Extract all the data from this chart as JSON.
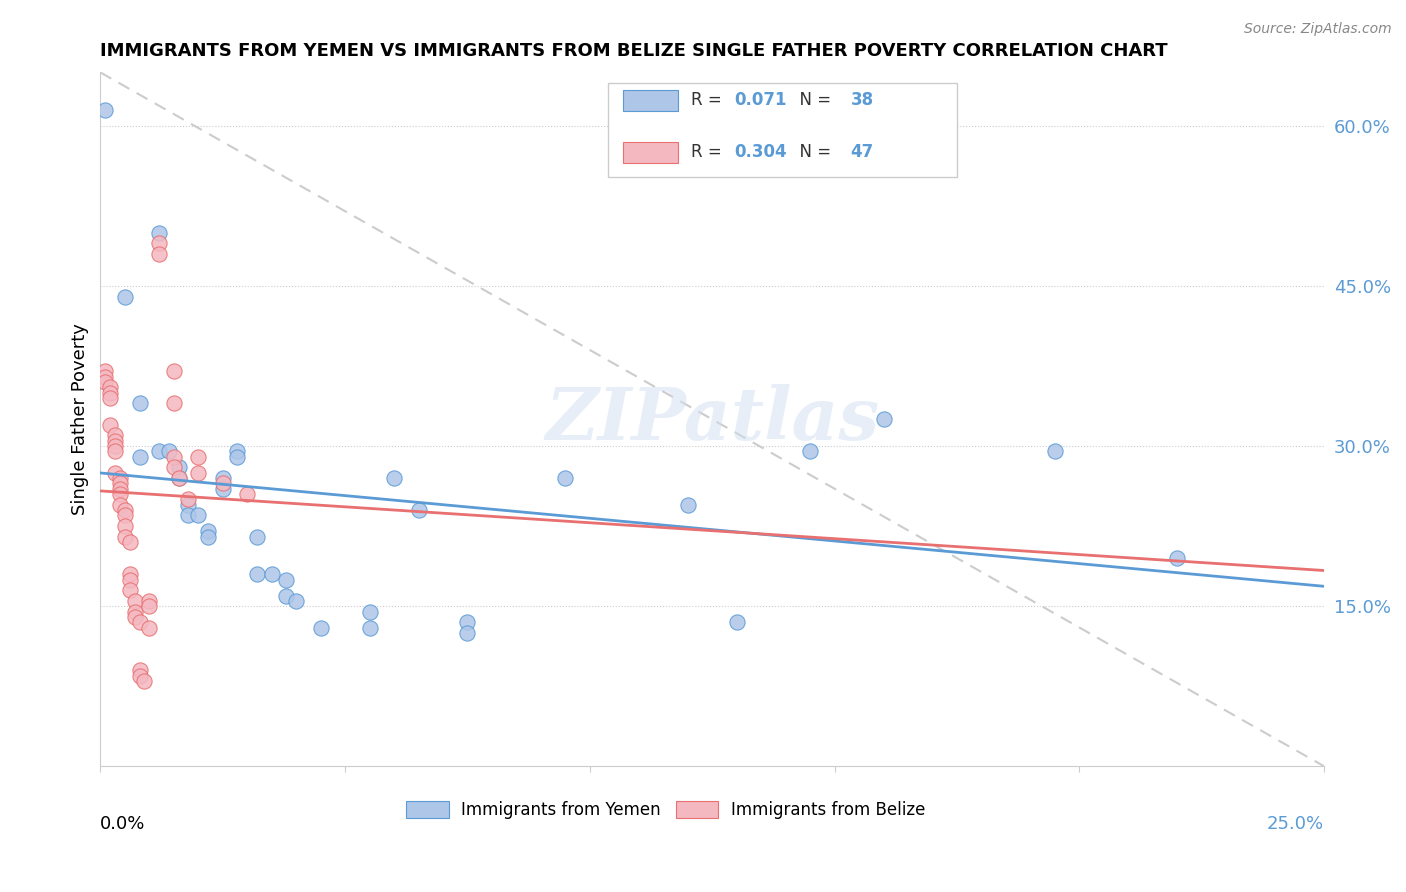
{
  "title": "IMMIGRANTS FROM YEMEN VS IMMIGRANTS FROM BELIZE SINGLE FATHER POVERTY CORRELATION CHART",
  "source": "Source: ZipAtlas.com",
  "ylabel": "Single Father Poverty",
  "ylabel_right_vals": [
    0.6,
    0.45,
    0.3,
    0.15
  ],
  "xlim": [
    0.0,
    0.25
  ],
  "ylim": [
    0.0,
    0.65
  ],
  "legend1_color": "#aec6e8",
  "legend2_color": "#f4b8c1",
  "trendline1_color": "#5b9bd5",
  "trendline2_color": "#e87070",
  "diagonal_color": "#cccccc",
  "watermark": "ZIPatlas",
  "blue_scatter": [
    [
      0.001,
      0.615
    ],
    [
      0.005,
      0.44
    ],
    [
      0.008,
      0.34
    ],
    [
      0.008,
      0.29
    ],
    [
      0.012,
      0.5
    ],
    [
      0.012,
      0.295
    ],
    [
      0.014,
      0.295
    ],
    [
      0.016,
      0.28
    ],
    [
      0.016,
      0.27
    ],
    [
      0.018,
      0.245
    ],
    [
      0.018,
      0.235
    ],
    [
      0.02,
      0.235
    ],
    [
      0.022,
      0.22
    ],
    [
      0.022,
      0.215
    ],
    [
      0.025,
      0.27
    ],
    [
      0.025,
      0.26
    ],
    [
      0.028,
      0.295
    ],
    [
      0.028,
      0.29
    ],
    [
      0.032,
      0.215
    ],
    [
      0.032,
      0.18
    ],
    [
      0.035,
      0.18
    ],
    [
      0.038,
      0.175
    ],
    [
      0.038,
      0.16
    ],
    [
      0.04,
      0.155
    ],
    [
      0.045,
      0.13
    ],
    [
      0.055,
      0.145
    ],
    [
      0.055,
      0.13
    ],
    [
      0.06,
      0.27
    ],
    [
      0.065,
      0.24
    ],
    [
      0.075,
      0.135
    ],
    [
      0.075,
      0.125
    ],
    [
      0.095,
      0.27
    ],
    [
      0.12,
      0.245
    ],
    [
      0.13,
      0.135
    ],
    [
      0.145,
      0.295
    ],
    [
      0.16,
      0.325
    ],
    [
      0.195,
      0.295
    ],
    [
      0.22,
      0.195
    ]
  ],
  "pink_scatter": [
    [
      0.001,
      0.37
    ],
    [
      0.001,
      0.365
    ],
    [
      0.001,
      0.36
    ],
    [
      0.002,
      0.355
    ],
    [
      0.002,
      0.35
    ],
    [
      0.002,
      0.345
    ],
    [
      0.002,
      0.32
    ],
    [
      0.003,
      0.31
    ],
    [
      0.003,
      0.305
    ],
    [
      0.003,
      0.3
    ],
    [
      0.003,
      0.295
    ],
    [
      0.003,
      0.275
    ],
    [
      0.004,
      0.27
    ],
    [
      0.004,
      0.265
    ],
    [
      0.004,
      0.26
    ],
    [
      0.004,
      0.255
    ],
    [
      0.004,
      0.245
    ],
    [
      0.005,
      0.24
    ],
    [
      0.005,
      0.235
    ],
    [
      0.005,
      0.225
    ],
    [
      0.005,
      0.215
    ],
    [
      0.006,
      0.21
    ],
    [
      0.006,
      0.18
    ],
    [
      0.006,
      0.175
    ],
    [
      0.006,
      0.165
    ],
    [
      0.007,
      0.155
    ],
    [
      0.007,
      0.145
    ],
    [
      0.007,
      0.14
    ],
    [
      0.008,
      0.135
    ],
    [
      0.008,
      0.09
    ],
    [
      0.008,
      0.085
    ],
    [
      0.009,
      0.08
    ],
    [
      0.01,
      0.155
    ],
    [
      0.01,
      0.15
    ],
    [
      0.01,
      0.13
    ],
    [
      0.012,
      0.49
    ],
    [
      0.012,
      0.48
    ],
    [
      0.015,
      0.37
    ],
    [
      0.015,
      0.34
    ],
    [
      0.015,
      0.29
    ],
    [
      0.015,
      0.28
    ],
    [
      0.016,
      0.27
    ],
    [
      0.018,
      0.25
    ],
    [
      0.02,
      0.29
    ],
    [
      0.02,
      0.275
    ],
    [
      0.025,
      0.265
    ],
    [
      0.03,
      0.255
    ]
  ]
}
